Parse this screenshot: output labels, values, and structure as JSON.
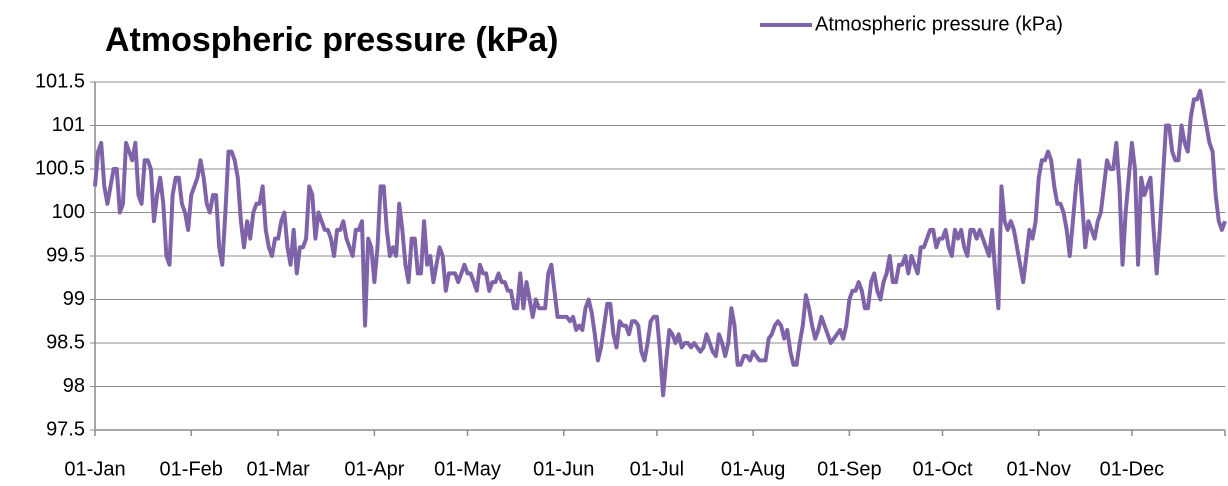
{
  "chart_data": {
    "type": "line",
    "title": "Atmospheric pressure (kPa)",
    "legend": "top-right",
    "grid": true,
    "categories": [
      "01-Jan",
      null,
      null,
      null,
      null,
      null,
      null,
      null,
      null,
      null,
      null,
      null,
      null,
      null,
      null,
      null,
      null,
      null,
      null,
      null,
      null,
      null,
      null,
      null,
      null,
      null,
      null,
      null,
      null,
      null,
      null,
      "01-Feb",
      null,
      null,
      null,
      null,
      null,
      null,
      null,
      null,
      null,
      null,
      null,
      null,
      null,
      null,
      null,
      null,
      null,
      null,
      null,
      null,
      null,
      null,
      null,
      null,
      null,
      null,
      null,
      "01-Mar",
      null,
      null,
      null,
      null,
      null,
      null,
      null,
      null,
      null,
      null,
      null,
      null,
      null,
      null,
      null,
      null,
      null,
      null,
      null,
      null,
      null,
      null,
      null,
      null,
      null,
      null,
      null,
      null,
      null,
      null,
      "01-Apr",
      null,
      null,
      null,
      null,
      null,
      null,
      null,
      null,
      null,
      null,
      null,
      null,
      null,
      null,
      null,
      null,
      null,
      null,
      null,
      null,
      null,
      null,
      null,
      null,
      null,
      null,
      null,
      null,
      null,
      "01-May",
      null,
      null,
      null,
      null,
      null,
      null,
      null,
      null,
      null,
      null,
      null,
      null,
      null,
      null,
      null,
      null,
      null,
      null,
      null,
      null,
      null,
      null,
      null,
      null,
      null,
      null,
      null,
      null,
      null,
      null,
      "01-Jun",
      null,
      null,
      null,
      null,
      null,
      null,
      null,
      null,
      null,
      null,
      null,
      null,
      null,
      null,
      null,
      null,
      null,
      null,
      null,
      null,
      null,
      null,
      null,
      null,
      null,
      null,
      null,
      null,
      null,
      "01-Jul",
      null,
      null,
      null,
      null,
      null,
      null,
      null,
      null,
      null,
      null,
      null,
      null,
      null,
      null,
      null,
      null,
      null,
      null,
      null,
      null,
      null,
      null,
      null,
      null,
      null,
      null,
      null,
      null,
      null,
      null,
      "01-Aug",
      null,
      null,
      null,
      null,
      null,
      null,
      null,
      null,
      null,
      null,
      null,
      null,
      null,
      null,
      null,
      null,
      null,
      null,
      null,
      null,
      null,
      null,
      null,
      null,
      null,
      null,
      null,
      null,
      null,
      null,
      "01-Sep",
      null,
      null,
      null,
      null,
      null,
      null,
      null,
      null,
      null,
      null,
      null,
      null,
      null,
      null,
      null,
      null,
      null,
      null,
      null,
      null,
      null,
      null,
      null,
      null,
      null,
      null,
      null,
      null,
      null,
      "01-Oct",
      null,
      null,
      null,
      null,
      null,
      null,
      null,
      null,
      null,
      null,
      null,
      null,
      null,
      null,
      null,
      null,
      null,
      null,
      null,
      null,
      null,
      null,
      null,
      null,
      null,
      null,
      null,
      null,
      null,
      null,
      "01-Nov",
      null,
      null,
      null,
      null,
      null,
      null,
      null,
      null,
      null,
      null,
      null,
      null,
      null,
      null,
      null,
      null,
      null,
      null,
      null,
      null,
      null,
      null,
      null,
      null,
      null,
      null,
      null,
      null,
      null,
      "01-Dec",
      null,
      null,
      null,
      null,
      null,
      null,
      null,
      null,
      null,
      null,
      null,
      null,
      null,
      null,
      null,
      null,
      null,
      null,
      null,
      null,
      null,
      null,
      null,
      null,
      null,
      null,
      null,
      null,
      null,
      null
    ],
    "series": [
      {
        "name": "Atmospheric pressure (kPa)",
        "color": "#7f63a8",
        "values": [
          100.3,
          100.7,
          100.8,
          100.3,
          100.1,
          100.3,
          100.5,
          100.5,
          100.0,
          100.1,
          100.8,
          100.7,
          100.6,
          100.8,
          100.2,
          100.1,
          100.6,
          100.6,
          100.5,
          99.9,
          100.2,
          100.4,
          100.1,
          99.5,
          99.4,
          100.2,
          100.4,
          100.4,
          100.1,
          100.0,
          99.8,
          100.2,
          100.3,
          100.4,
          100.6,
          100.4,
          100.1,
          100.0,
          100.2,
          100.2,
          99.6,
          99.4,
          100.0,
          100.7,
          100.7,
          100.6,
          100.4,
          99.9,
          99.6,
          99.9,
          99.7,
          100.0,
          100.1,
          100.1,
          100.3,
          99.8,
          99.6,
          99.5,
          99.7,
          99.7,
          99.9,
          100.0,
          99.6,
          99.4,
          99.8,
          99.3,
          99.6,
          99.6,
          99.7,
          100.3,
          100.2,
          99.7,
          100.0,
          99.9,
          99.8,
          99.8,
          99.7,
          99.5,
          99.8,
          99.8,
          99.9,
          99.7,
          99.6,
          99.5,
          99.8,
          99.8,
          99.9,
          98.7,
          99.7,
          99.6,
          99.2,
          99.6,
          100.3,
          100.3,
          99.8,
          99.5,
          99.6,
          99.5,
          100.1,
          99.8,
          99.4,
          99.2,
          99.7,
          99.7,
          99.3,
          99.3,
          99.9,
          99.4,
          99.5,
          99.2,
          99.4,
          99.6,
          99.5,
          99.1,
          99.3,
          99.3,
          99.3,
          99.2,
          99.3,
          99.4,
          99.3,
          99.3,
          99.2,
          99.1,
          99.4,
          99.3,
          99.3,
          99.1,
          99.2,
          99.2,
          99.3,
          99.2,
          99.2,
          99.1,
          99.1,
          98.9,
          98.9,
          99.3,
          98.9,
          99.2,
          99.0,
          98.8,
          99.0,
          98.9,
          98.9,
          98.9,
          99.3,
          99.4,
          99.1,
          98.8,
          98.8,
          98.8,
          98.8,
          98.75,
          98.8,
          98.65,
          98.7,
          98.65,
          98.9,
          99.0,
          98.85,
          98.6,
          98.3,
          98.45,
          98.7,
          98.95,
          98.95,
          98.6,
          98.45,
          98.75,
          98.7,
          98.7,
          98.6,
          98.75,
          98.75,
          98.7,
          98.4,
          98.3,
          98.5,
          98.75,
          98.8,
          98.8,
          98.4,
          97.9,
          98.3,
          98.65,
          98.6,
          98.5,
          98.6,
          98.45,
          98.5,
          98.5,
          98.45,
          98.5,
          98.45,
          98.4,
          98.45,
          98.6,
          98.5,
          98.4,
          98.35,
          98.6,
          98.5,
          98.35,
          98.5,
          98.9,
          98.7,
          98.25,
          98.25,
          98.35,
          98.35,
          98.3,
          98.4,
          98.35,
          98.3,
          98.3,
          98.3,
          98.55,
          98.6,
          98.7,
          98.75,
          98.7,
          98.55,
          98.65,
          98.4,
          98.25,
          98.25,
          98.5,
          98.7,
          99.05,
          98.9,
          98.7,
          98.55,
          98.65,
          98.8,
          98.7,
          98.6,
          98.5,
          98.55,
          98.6,
          98.65,
          98.55,
          98.7,
          99.0,
          99.1,
          99.1,
          99.2,
          99.1,
          98.9,
          98.9,
          99.2,
          99.3,
          99.1,
          99.0,
          99.2,
          99.3,
          99.5,
          99.2,
          99.2,
          99.4,
          99.4,
          99.5,
          99.3,
          99.5,
          99.4,
          99.3,
          99.6,
          99.6,
          99.7,
          99.8,
          99.8,
          99.6,
          99.7,
          99.7,
          99.8,
          99.6,
          99.5,
          99.8,
          99.7,
          99.8,
          99.6,
          99.5,
          99.8,
          99.8,
          99.7,
          99.8,
          99.7,
          99.6,
          99.5,
          99.8,
          99.3,
          98.9,
          100.3,
          99.9,
          99.8,
          99.9,
          99.8,
          99.6,
          99.4,
          99.2,
          99.5,
          99.8,
          99.7,
          99.9,
          100.4,
          100.6,
          100.6,
          100.7,
          100.6,
          100.3,
          100.1,
          100.1,
          100.0,
          99.8,
          99.5,
          99.9,
          100.3,
          100.6,
          100.1,
          99.6,
          99.9,
          99.8,
          99.7,
          99.9,
          100.0,
          100.3,
          100.6,
          100.5,
          100.5,
          100.8,
          100.3,
          99.4,
          100.0,
          100.4,
          100.8,
          100.5,
          99.4,
          100.4,
          100.2,
          100.3,
          100.4,
          99.8,
          99.3,
          99.8,
          100.4,
          101.0,
          101.0,
          100.7,
          100.6,
          100.6,
          101.0,
          100.8,
          100.7,
          101.1,
          101.3,
          101.3,
          101.4,
          101.2,
          101.0,
          100.8,
          100.7,
          100.2,
          99.9,
          99.8,
          99.9
        ]
      }
    ],
    "ylim": [
      97.5,
      101.5
    ],
    "yticks": [
      {
        "value": 97.5,
        "label": "97.5"
      },
      98,
      {
        "value": 98.5,
        "label": "98.5"
      },
      99,
      {
        "value": 99.5,
        "label": "99.5"
      },
      100,
      {
        "value": 100.5,
        "label": "100.5"
      },
      101,
      {
        "value": 101.5,
        "label": "101.5"
      }
    ]
  }
}
